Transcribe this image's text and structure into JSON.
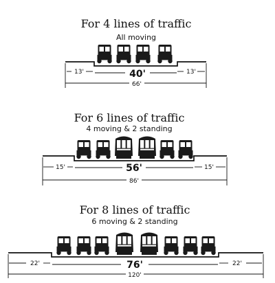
{
  "sections": [
    {
      "title": "For 4 lines of traffic",
      "subtitle": "All moving",
      "roadway": "40'",
      "sidewalk_left": "13'",
      "sidewalk_right": "13'",
      "total": "66'",
      "vehicles": [
        "car",
        "car",
        "car",
        "car"
      ]
    },
    {
      "title": "For 6 lines of traffic",
      "subtitle": "4 moving & 2 standing",
      "roadway": "56'",
      "sidewalk_left": "15'",
      "sidewalk_right": "15'",
      "total": "86'",
      "vehicles": [
        "car",
        "car",
        "streetcar",
        "streetcar",
        "car",
        "car"
      ]
    },
    {
      "title": "For 8 lines of traffic",
      "subtitle": "6 moving & 2 standing",
      "roadway": "76'",
      "sidewalk_left": "22'",
      "sidewalk_right": "22'",
      "total": "120'",
      "vehicles": [
        "car",
        "car",
        "car",
        "streetcar",
        "streetcar",
        "car",
        "car",
        "car"
      ]
    }
  ]
}
